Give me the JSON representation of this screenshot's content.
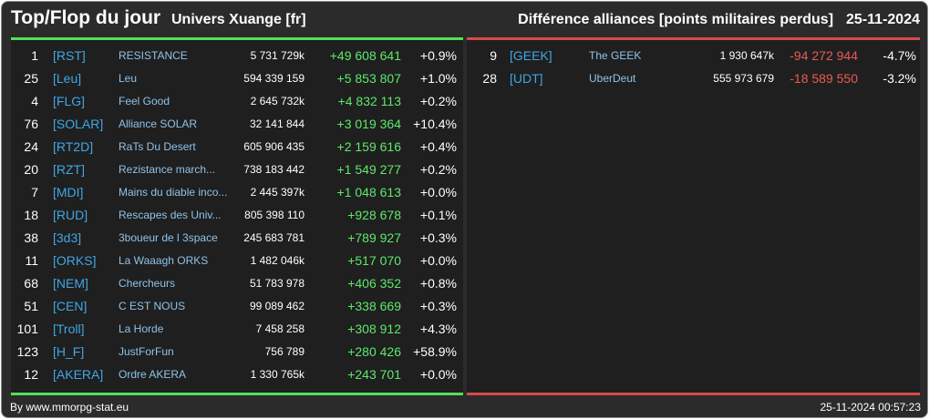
{
  "header": {
    "title": "Top/Flop du jour",
    "subtitle": "Univers Xuange [fr]",
    "description": "Différence alliances [points militaires perdus]",
    "date": "25-11-2024"
  },
  "top": [
    {
      "rank": "1",
      "tag": "[RST]",
      "name": "RESISTANCE",
      "points": "5 731 729k",
      "delta": "+49 608 641",
      "pct": "+0.9%"
    },
    {
      "rank": "25",
      "tag": "[Leu]",
      "name": "Leu",
      "points": "594 339 159",
      "delta": "+5 853 807",
      "pct": "+1.0%"
    },
    {
      "rank": "4",
      "tag": "[FLG]",
      "name": "Feel Good",
      "points": "2 645 732k",
      "delta": "+4 832 113",
      "pct": "+0.2%"
    },
    {
      "rank": "76",
      "tag": "[SOLAR]",
      "name": "Alliance SOLAR",
      "points": "32 141 844",
      "delta": "+3 019 364",
      "pct": "+10.4%"
    },
    {
      "rank": "24",
      "tag": "[RT2D]",
      "name": "RaTs Du Desert",
      "points": "605 906 435",
      "delta": "+2 159 616",
      "pct": "+0.4%"
    },
    {
      "rank": "20",
      "tag": "[RZT]",
      "name": "Rezistance march...",
      "points": "738 183 442",
      "delta": "+1 549 277",
      "pct": "+0.2%"
    },
    {
      "rank": "7",
      "tag": "[MDI]",
      "name": "Mains du diable inco...",
      "points": "2 445 397k",
      "delta": "+1 048 613",
      "pct": "+0.0%"
    },
    {
      "rank": "18",
      "tag": "[RUD]",
      "name": "Rescapes des Univ...",
      "points": "805 398 110",
      "delta": "+928 678",
      "pct": "+0.1%"
    },
    {
      "rank": "38",
      "tag": "[3d3]",
      "name": "3boueur de l 3space",
      "points": "245 683 781",
      "delta": "+789 927",
      "pct": "+0.3%"
    },
    {
      "rank": "11",
      "tag": "[ORKS]",
      "name": "La Waaagh ORKS",
      "points": "1 482 046k",
      "delta": "+517 070",
      "pct": "+0.0%"
    },
    {
      "rank": "68",
      "tag": "[NEM]",
      "name": "Chercheurs",
      "points": "51 783 978",
      "delta": "+406 352",
      "pct": "+0.8%"
    },
    {
      "rank": "51",
      "tag": "[CEN]",
      "name": "C EST NOUS",
      "points": "99 089 462",
      "delta": "+338 669",
      "pct": "+0.3%"
    },
    {
      "rank": "101",
      "tag": "[Troll]",
      "name": "La Horde",
      "points": "7 458 258",
      "delta": "+308 912",
      "pct": "+4.3%"
    },
    {
      "rank": "123",
      "tag": "[H_F]",
      "name": "JustForFun",
      "points": "756 789",
      "delta": "+280 426",
      "pct": "+58.9%"
    },
    {
      "rank": "12",
      "tag": "[AKERA]",
      "name": "Ordre AKERA",
      "points": "1 330 765k",
      "delta": "+243 701",
      "pct": "+0.0%"
    }
  ],
  "flop": [
    {
      "rank": "9",
      "tag": "[GEEK]",
      "name": "The GEEK",
      "points": "1 930 647k",
      "delta": "-94 272 944",
      "pct": "-4.7%"
    },
    {
      "rank": "28",
      "tag": "[UDT]",
      "name": "UberDeut",
      "points": "555 973 679",
      "delta": "-18 589 550",
      "pct": "-3.2%"
    }
  ],
  "footer": {
    "credit": "By www.mmorpg-stat.eu",
    "timestamp": "25-11-2024 00:57:23"
  },
  "colors": {
    "background": "#2b2b2b",
    "panel": "#1f1f1f",
    "top_accent": "#52e05a",
    "flop_accent": "#d94b46",
    "tag": "#3fa7e6",
    "name": "#8fc3e8"
  }
}
